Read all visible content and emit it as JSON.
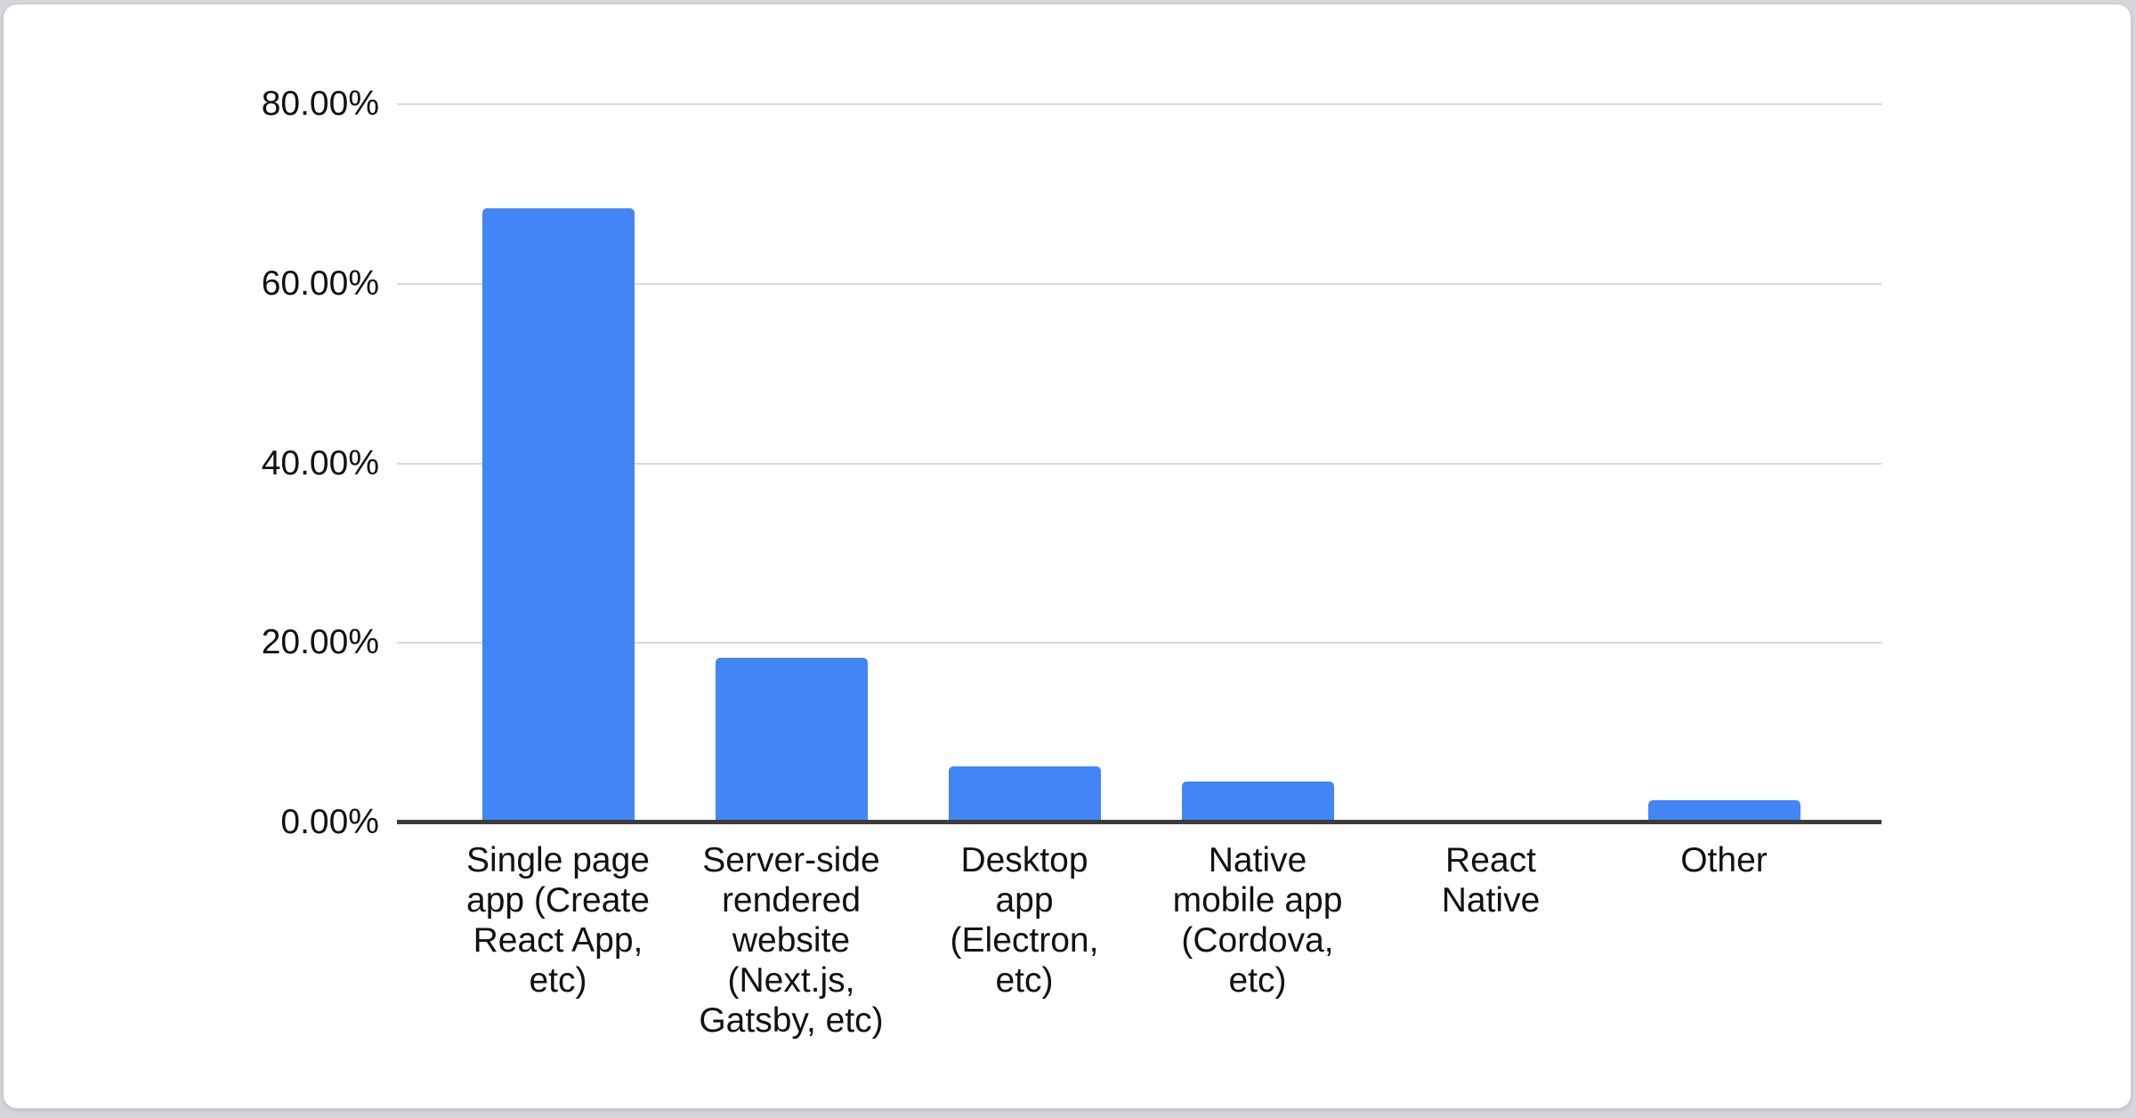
{
  "page": {
    "background_color": "#d5d6da",
    "card_background_color": "#ffffff"
  },
  "chart_data": {
    "type": "bar",
    "title": "",
    "xlabel": "",
    "ylabel": "",
    "categories": [
      "Single page app (Create React App, etc)",
      "Server-side rendered website (Next.js, Gatsby, etc)",
      "Desktop app (Electron, etc)",
      "Native mobile app (Cordova, etc)",
      "React Native",
      "Other"
    ],
    "category_display_lines": [
      "Single page\napp (Create\nReact App,\netc)",
      "Server-side\nrendered\nwebsite\n(Next.js,\nGatsby, etc)",
      "Desktop\napp\n(Electron,\netc)",
      "Native\nmobile app\n(Cordova,\netc)",
      "React\nNative",
      "Other"
    ],
    "values": [
      68.4,
      18.3,
      6.2,
      4.6,
      0,
      2.5
    ],
    "value_unit": "%",
    "ylim": [
      0,
      80
    ],
    "ytick_interval": 20,
    "ytick_labels": [
      "0.00%",
      "20.00%",
      "40.00%",
      "60.00%",
      "80.00%"
    ],
    "grid": true,
    "legend": "none",
    "colors": {
      "bar": "#4285f4",
      "gridline": "#d9d9d9",
      "axis_line": "#3c3c3c",
      "label_text": "#111111"
    }
  }
}
